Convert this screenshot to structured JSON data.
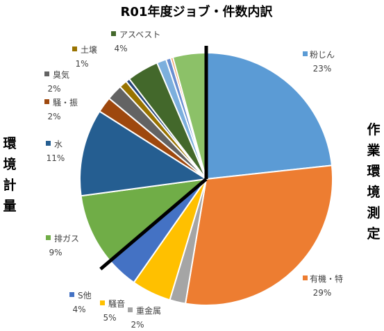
{
  "chart_data": {
    "type": "pie",
    "title": "R01年度ジョブ・件数内訳",
    "group_labels": {
      "right": "作業環境測定",
      "left": "環境計量"
    },
    "slices": [
      {
        "name": "粉じん",
        "value": 23,
        "percent_label": "23%",
        "legend": true,
        "color": "#5b9bd5"
      },
      {
        "name": "有機・特",
        "value": 29,
        "percent_label": "29%",
        "legend": true,
        "color": "#ed7d31"
      },
      {
        "name": "重金属",
        "value": 2,
        "percent_label": "2%",
        "legend": true,
        "color": "#a5a5a5"
      },
      {
        "name": "騒音",
        "value": 5,
        "percent_label": "5%",
        "legend": true,
        "color": "#ffc000"
      },
      {
        "name": "S他",
        "value": 4,
        "percent_label": "4%",
        "legend": true,
        "color": "#4472c4"
      },
      {
        "name": "排ガス",
        "value": 9,
        "percent_label": "9%",
        "legend": true,
        "color": "#70ad47"
      },
      {
        "name": "水",
        "value": 11,
        "percent_label": "11%",
        "legend": true,
        "color": "#255e91"
      },
      {
        "name": "騒・振",
        "value": 2,
        "percent_label": "2%",
        "legend": true,
        "color": "#9e480e"
      },
      {
        "name": "臭気",
        "value": 2,
        "percent_label": "2%",
        "legend": true,
        "color": "#636363"
      },
      {
        "name": "土壌",
        "value": 1,
        "percent_label": "1%",
        "legend": true,
        "color": "#997300"
      },
      {
        "name": "",
        "value": 0.5,
        "percent_label": "",
        "legend": false,
        "color": "#264478"
      },
      {
        "name": "アスベスト",
        "value": 4,
        "percent_label": "4%",
        "legend": true,
        "color": "#43682b"
      },
      {
        "name": "",
        "value": 1.2,
        "percent_label": "",
        "legend": false,
        "color": "#7cafdd"
      },
      {
        "name": "",
        "value": 0.6,
        "percent_label": "",
        "legend": false,
        "color": "#698ed0"
      },
      {
        "name": "",
        "value": 0.3,
        "percent_label": "",
        "legend": false,
        "color": "#f1975a"
      },
      {
        "name": "",
        "value": 4.2,
        "percent_label": "",
        "legend": false,
        "color": "#8cc168"
      }
    ],
    "divider_color": "#000000"
  }
}
